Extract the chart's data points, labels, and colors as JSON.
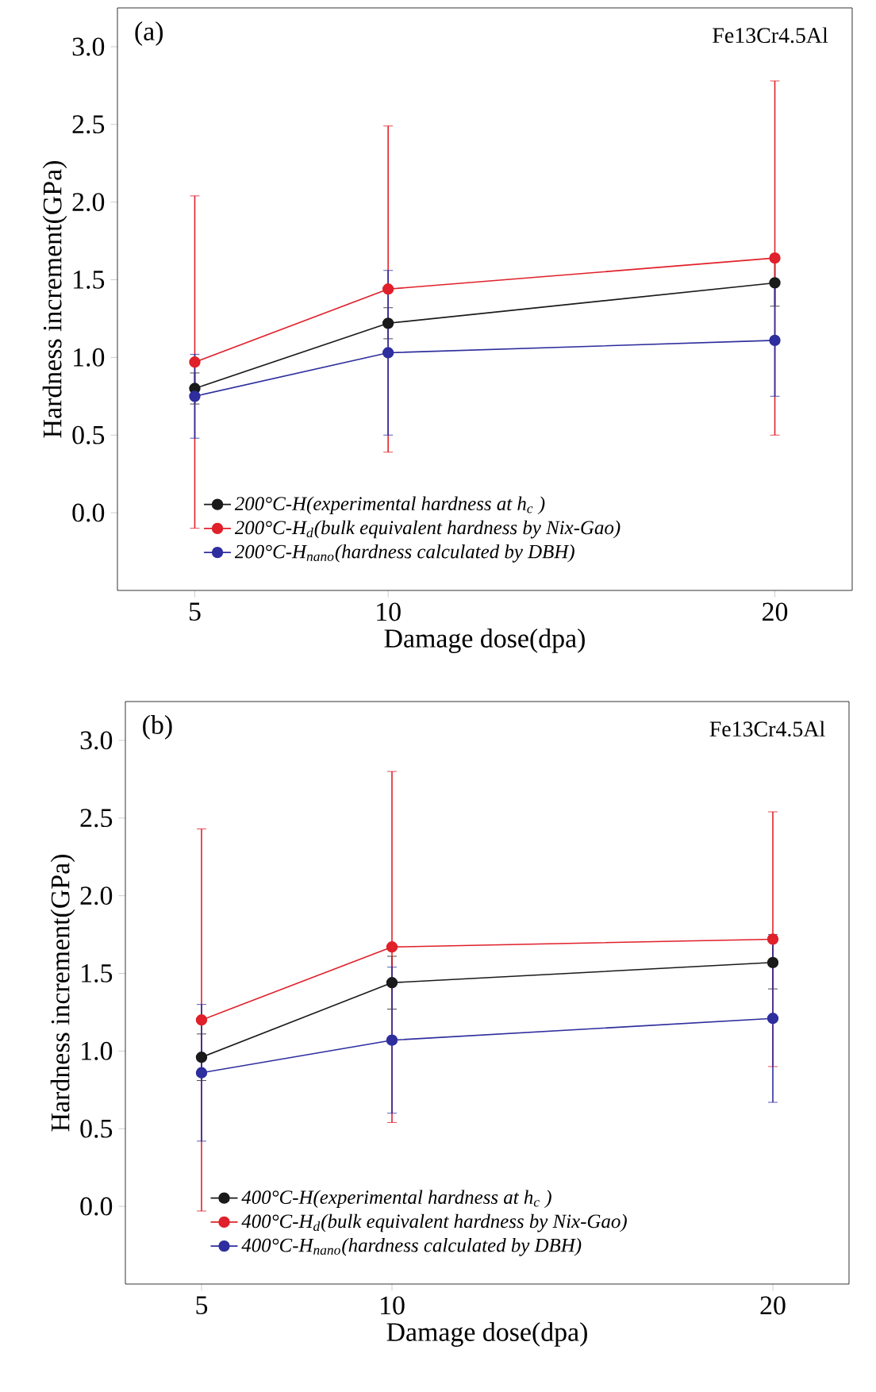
{
  "chart_data": [
    {
      "type": "line",
      "xlabel": "Damage dose(dpa)",
      "ylabel": "Hardness increment(GPa)",
      "annotations": [
        "(a)",
        "Fe13Cr4.5Al"
      ],
      "x": [
        5,
        10,
        20
      ],
      "xlim": [
        3,
        22
      ],
      "xticks": [
        5,
        10,
        20
      ],
      "ylim": [
        -0.5,
        3.25
      ],
      "yticks": [
        {
          "value": 0,
          "label": "0.0"
        },
        {
          "value": 0.5,
          "label": "0.5"
        },
        {
          "value": 1,
          "label": "1.0"
        },
        {
          "value": 1.5,
          "label": "1.5"
        },
        {
          "value": 2,
          "label": "2.0"
        },
        {
          "value": 2.5,
          "label": "2.5"
        },
        {
          "value": 3,
          "label": "3.0"
        }
      ],
      "legend": "bottom left",
      "marker": "circle",
      "line_style": "solid",
      "series": [
        {
          "name": "200°C-H(experimental hardness at h$_{c}$ )",
          "color": "#1a1a1a",
          "values": [
            0.8,
            1.22,
            1.48
          ],
          "errors": [
            0.1,
            0.1,
            0.15
          ]
        },
        {
          "name": "200°C-H$_{d}$(bulk equivalent hardness by Nix-Gao)",
          "color": "#e0202a",
          "values": [
            0.97,
            1.44,
            1.64
          ],
          "errors": [
            1.07,
            1.05,
            1.14
          ]
        },
        {
          "name": "200°C-H$_{nano}$(hardness calculated by DBH)",
          "color": "#2e2e9e",
          "values": [
            0.75,
            1.03,
            1.11
          ],
          "errors": [
            0.27,
            0.53,
            0.36
          ]
        }
      ]
    },
    {
      "type": "line",
      "xlabel": "Damage dose(dpa)",
      "ylabel": "Hardness increment(GPa)",
      "annotations": [
        "(b)",
        "Fe13Cr4.5Al"
      ],
      "x": [
        5,
        10,
        20
      ],
      "xlim": [
        3,
        22
      ],
      "xticks": [
        5,
        10,
        20
      ],
      "ylim": [
        -0.5,
        3.25
      ],
      "yticks": [
        {
          "value": 0,
          "label": "0.0"
        },
        {
          "value": 0.5,
          "label": "0.5"
        },
        {
          "value": 1,
          "label": "1.0"
        },
        {
          "value": 1.5,
          "label": "1.5"
        },
        {
          "value": 2,
          "label": "2.0"
        },
        {
          "value": 2.5,
          "label": "2.5"
        },
        {
          "value": 3,
          "label": "3.0"
        }
      ],
      "legend": "bottom left",
      "marker": "circle",
      "line_style": "solid",
      "series": [
        {
          "name": "400°C-H(experimental hardness at h$_{c}$ )",
          "color": "#1a1a1a",
          "values": [
            0.96,
            1.44,
            1.57
          ],
          "errors": [
            0.15,
            0.17,
            0.17
          ]
        },
        {
          "name": "400°C-H$_{d}$(bulk equivalent hardness by Nix-Gao)",
          "color": "#e0202a",
          "values": [
            1.2,
            1.67,
            1.72
          ],
          "errors": [
            1.23,
            1.13,
            0.82
          ]
        },
        {
          "name": "400°C-H$_{nano}$(hardness calculated by DBH)",
          "color": "#2e2e9e",
          "values": [
            0.86,
            1.07,
            1.21
          ],
          "errors": [
            0.44,
            0.47,
            0.54
          ]
        }
      ]
    }
  ]
}
